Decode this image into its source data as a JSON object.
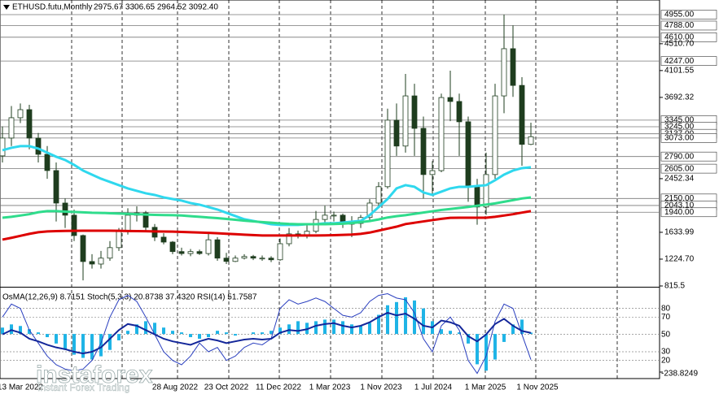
{
  "chart_data": [
    {
      "type": "candlestick",
      "title": "ETHUSD.futu,Monthly",
      "subtitle": "2975.67 3306.65 2964.52 3092.40",
      "open": [
        2800,
        3072,
        3382,
        3505,
        3072,
        2824,
        2576,
        2080,
        1895,
        1585,
        1188,
        1150,
        1240,
        1400,
        1650,
        1895,
        1930,
        1710,
        1560,
        1485,
        1340,
        1310,
        1340,
        1310,
        1520,
        1240,
        1190,
        1240,
        1265,
        1240,
        1240,
        1215,
        1460,
        1610,
        1585,
        1650,
        1830,
        1895,
        1895,
        1770,
        1770,
        1860,
        2080,
        2330,
        3345,
        2950,
        3715,
        3220,
        2515,
        2575,
        3690,
        3630,
        3320,
        2330,
        2020,
        2515,
        3715,
        4435,
        3875,
        2975.67
      ],
      "high": [
        3250,
        3560,
        3600,
        3580,
        3150,
        2950,
        2700,
        2150,
        1980,
        1600,
        1300,
        1350,
        1500,
        1700,
        2000,
        2030,
        1960,
        1760,
        1620,
        1500,
        1400,
        1380,
        1370,
        1640,
        1560,
        1320,
        1280,
        1300,
        1290,
        1280,
        1270,
        1540,
        1700,
        1660,
        1750,
        1960,
        2040,
        1950,
        1920,
        1880,
        1900,
        2140,
        2400,
        3520,
        3600,
        4050,
        3900,
        3400,
        2720,
        3750,
        4100,
        3750,
        3400,
        2450,
        2850,
        3900,
        4955,
        4790,
        4000,
        3306.65
      ],
      "low": [
        2700,
        2950,
        3300,
        2900,
        2700,
        2450,
        1800,
        1700,
        1500,
        900,
        1080,
        1080,
        1200,
        1350,
        1600,
        1800,
        1650,
        1500,
        1450,
        1300,
        1280,
        1270,
        1290,
        1280,
        1200,
        1150,
        1180,
        1220,
        1210,
        1200,
        1180,
        1200,
        1420,
        1540,
        1540,
        1620,
        1780,
        1800,
        1700,
        1560,
        1700,
        1820,
        2000,
        2300,
        2800,
        2850,
        2800,
        2150,
        2200,
        2550,
        3330,
        2800,
        2100,
        1750,
        1900,
        2450,
        3450,
        3700,
        2650,
        2964.52
      ],
      "close": [
        3072,
        3382,
        3505,
        3072,
        2824,
        2576,
        2080,
        1895,
        1585,
        1188,
        1150,
        1240,
        1400,
        1650,
        1895,
        1930,
        1710,
        1560,
        1485,
        1340,
        1310,
        1340,
        1310,
        1520,
        1240,
        1190,
        1240,
        1265,
        1240,
        1240,
        1215,
        1460,
        1610,
        1585,
        1650,
        1830,
        1895,
        1895,
        1770,
        1770,
        1860,
        2080,
        2330,
        3345,
        2950,
        3715,
        3220,
        2515,
        2575,
        3690,
        3630,
        3320,
        2330,
        2020,
        2515,
        3715,
        4435,
        3875,
        2975.67,
        3092.4
      ],
      "series": [
        {
          "color": "#2fd8ee",
          "values": [
            2886,
            2923,
            2948,
            2948,
            2911,
            2849,
            2787,
            2737,
            2663,
            2576,
            2514,
            2452,
            2403,
            2353,
            2304,
            2266,
            2229,
            2204,
            2167,
            2142,
            2118,
            2080,
            2056,
            2019,
            1982,
            1932,
            1882,
            1833,
            1808,
            1783,
            1758,
            1746,
            1746,
            1746,
            1758,
            1758,
            1771,
            1771,
            1783,
            1796,
            1808,
            1895,
            2019,
            2142,
            2304,
            2353,
            2328,
            2242,
            2204,
            2254,
            2304,
            2328,
            2328,
            2341,
            2353,
            2428,
            2514,
            2576,
            2613,
            2626
          ]
        },
        {
          "color": "#2fdc8c",
          "values": [
            1857,
            1870,
            1890,
            1910,
            1940,
            1957,
            1957,
            1950,
            1945,
            1938,
            1932,
            1930,
            1925,
            1920,
            1915,
            1910,
            1905,
            1900,
            1897,
            1895,
            1890,
            1880,
            1870,
            1860,
            1850,
            1838,
            1825,
            1812,
            1800,
            1790,
            1780,
            1770,
            1762,
            1758,
            1758,
            1758,
            1758,
            1760,
            1765,
            1775,
            1790,
            1805,
            1830,
            1860,
            1880,
            1895,
            1915,
            1935,
            1955,
            1975,
            1990,
            2005,
            2020,
            2040,
            2056,
            2075,
            2100,
            2125,
            2150,
            2167
          ]
        },
        {
          "color": "#dd0000",
          "values": [
            1523,
            1550,
            1580,
            1610,
            1635,
            1647,
            1652,
            1655,
            1657,
            1659,
            1659,
            1659,
            1658,
            1656,
            1654,
            1652,
            1650,
            1648,
            1646,
            1645,
            1640,
            1635,
            1630,
            1625,
            1620,
            1612,
            1605,
            1598,
            1592,
            1586,
            1585,
            1585,
            1585,
            1585,
            1585,
            1585,
            1587,
            1590,
            1595,
            1600,
            1610,
            1630,
            1660,
            1690,
            1720,
            1760,
            1780,
            1800,
            1820,
            1840,
            1855,
            1857,
            1857,
            1857,
            1857,
            1870,
            1890,
            1910,
            1935,
            1957
          ]
        }
      ],
      "ylim": [
        815.5,
        5178
      ],
      "yticks": [
        {
          "value": 4510.7,
          "label": "4510.70"
        },
        4101.55,
        3692.32,
        2452.34,
        1633.99,
        {
          "value": 1224.7,
          "label": "1224.70"
        },
        815.5
      ],
      "levels": [
        {
          "value": 4955,
          "label": "4955.00"
        },
        {
          "value": 4788,
          "label": "4788.00"
        },
        {
          "value": 4610,
          "label": "4610.00"
        },
        {
          "value": 4247,
          "label": "4247.00"
        },
        {
          "value": 3345,
          "label": "3345.00"
        },
        {
          "value": 3245,
          "label": "3245.00"
        },
        {
          "value": 3137,
          "label": "3137.00"
        },
        {
          "value": 3073,
          "label": "3073.00"
        },
        {
          "value": 2790,
          "label": "2790.00"
        },
        {
          "value": 2605,
          "label": "2605.00"
        },
        {
          "value": 2150,
          "label": "2150.00"
        },
        {
          "value": 2043.1,
          "label": "2043.10"
        },
        {
          "value": 1940,
          "label": "1940.00"
        }
      ],
      "x_labels": [
        "13 Mar 2022",
        "28 Aug 2022",
        "23 Oct 2022",
        "11 Dec 2022",
        "1 Mar 2023",
        "1 Nov 2023",
        "1 Jul 2024",
        "1 Mar 2025",
        "1 Nov 2025"
      ],
      "bull_color": "#ffffff",
      "bear_color": "#1e3d1e",
      "grid": true
    },
    {
      "type": "oscillator",
      "title": "OsMA(12,26,9) 8.7151  Stoch(5,3,3) 20.8738 37.4320  RSI(14) 51.7587",
      "osma": {
        "color": "#1fb4e6",
        "values": [
          40,
          60,
          50,
          30,
          10,
          -20,
          -60,
          -100,
          -130,
          -150,
          -160,
          -140,
          -100,
          -40,
          20,
          60,
          80,
          70,
          40,
          20,
          10,
          -20,
          -30,
          -20,
          20,
          10,
          -10,
          0,
          10,
          10,
          20,
          40,
          60,
          80,
          70,
          80,
          90,
          90,
          80,
          60,
          50,
          70,
          120,
          180,
          200,
          230,
          210,
          160,
          80,
          30,
          20,
          10,
          -60,
          -190,
          -230,
          -160,
          -50,
          60,
          90,
          8.7151
        ]
      },
      "osma_ylim": [
        -238.8249,
        250
      ],
      "osma_yticks": [
        -238.8249
      ],
      "series": [
        {
          "color": "#2a3fbf",
          "width": 1,
          "values": [
            70,
            85,
            80,
            55,
            40,
            25,
            15,
            10,
            8,
            10,
            20,
            40,
            70,
            90,
            95,
            88,
            70,
            50,
            30,
            20,
            15,
            25,
            40,
            30,
            35,
            20,
            25,
            35,
            40,
            38,
            45,
            80,
            90,
            85,
            88,
            92,
            88,
            80,
            72,
            70,
            75,
            88,
            95,
            97,
            92,
            90,
            75,
            45,
            30,
            60,
            70,
            55,
            20,
            5,
            25,
            65,
            85,
            80,
            50,
            20.8738
          ]
        },
        {
          "color": "#14279a",
          "width": 2,
          "values": [
            50,
            55,
            52,
            45,
            42,
            38,
            35,
            33,
            30,
            28,
            30,
            35,
            45,
            55,
            62,
            60,
            55,
            50,
            45,
            42,
            40,
            38,
            42,
            45,
            43,
            40,
            42,
            44,
            45,
            44,
            45,
            52,
            55,
            54,
            56,
            60,
            62,
            63,
            60,
            58,
            60,
            64,
            70,
            75,
            72,
            74,
            68,
            60,
            58,
            66,
            64,
            60,
            48,
            42,
            50,
            62,
            68,
            60,
            54,
            51.7587
          ]
        }
      ],
      "ylim": [
        0,
        100
      ],
      "yticks": [
        80,
        70,
        50,
        30,
        20
      ]
    }
  ],
  "watermark": {
    "brand": "instaforex",
    "slogan": "Instant Forex Trading"
  }
}
